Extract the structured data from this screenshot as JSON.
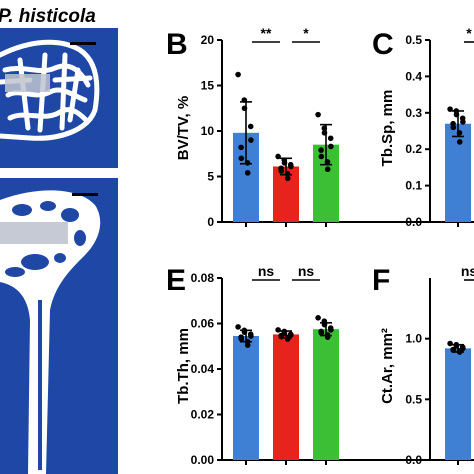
{
  "figure": {
    "micro_ct_title": "P. histicola",
    "colors": {
      "scan_bg": "#1f47a6",
      "bone": "#ffffff",
      "grey_bone": "#bfc4cf"
    }
  },
  "panels": [
    {
      "letter": "B",
      "ylabel": "BV/TV, %"
    },
    {
      "letter": "C",
      "ylabel": "Tb.Sp, mm"
    },
    {
      "letter": "E",
      "ylabel": "Tb.Th, mm"
    },
    {
      "letter": "F",
      "ylabel": "Ct.Ar, mm²"
    }
  ],
  "chart_data": [
    {
      "type": "bar",
      "panel": "B",
      "ylabel": "BV/TV, %",
      "ylim": [
        0,
        20
      ],
      "yticks": [
        "0",
        "5",
        "10",
        "15",
        "20"
      ],
      "colors": [
        "#3f7fd4",
        "#e8221c",
        "#3dbf35"
      ],
      "values": [
        9.8,
        6.1,
        8.5
      ],
      "errors": [
        3.4,
        0.9,
        2.2
      ],
      "points": [
        [
          16.2,
          13.4,
          12.5,
          10.5,
          9.0,
          8.2,
          7.0,
          6.5,
          5.4
        ],
        [
          7.2,
          6.8,
          6.5,
          6.3,
          6.1,
          5.9,
          5.6,
          5.3,
          4.8
        ],
        [
          11.8,
          10.3,
          9.8,
          9.2,
          8.3,
          7.9,
          7.2,
          6.6,
          5.8
        ]
      ],
      "significance": [
        {
          "from": 0,
          "to": 1,
          "label": "**"
        },
        {
          "from": 1,
          "to": 2,
          "label": "*"
        }
      ]
    },
    {
      "type": "bar",
      "panel": "C",
      "ylabel": "Tb.Sp, mm",
      "ylim": [
        0,
        0.5
      ],
      "yticks": [
        "0.0",
        "0.1",
        "0.2",
        "0.3",
        "0.4",
        "0.5"
      ],
      "colors": [
        "#3f7fd4"
      ],
      "values": [
        0.27
      ],
      "errors": [
        0.035
      ],
      "points": [
        [
          0.31,
          0.305,
          0.295,
          0.285,
          0.275,
          0.27,
          0.26,
          0.245,
          0.22
        ]
      ],
      "significance": [
        {
          "from": 0,
          "to": 1,
          "label": "*"
        }
      ]
    },
    {
      "type": "bar",
      "panel": "E",
      "ylabel": "Tb.Th, mm",
      "ylim": [
        0,
        0.08
      ],
      "yticks": [
        "0.00",
        "0.02",
        "0.04",
        "0.06",
        "0.08"
      ],
      "colors": [
        "#3f7fd4",
        "#e8221c",
        "#3dbf35"
      ],
      "values": [
        0.0545,
        0.0552,
        0.0575
      ],
      "errors": [
        0.0025,
        0.0015,
        0.0028
      ],
      "points": [
        [
          0.0585,
          0.057,
          0.0562,
          0.0553,
          0.0545,
          0.054,
          0.0532,
          0.052,
          0.0505
        ],
        [
          0.0572,
          0.0565,
          0.0558,
          0.0553,
          0.055,
          0.0547,
          0.0542,
          0.0538,
          0.0532
        ],
        [
          0.0625,
          0.061,
          0.0595,
          0.058,
          0.0572,
          0.0565,
          0.0558,
          0.055,
          0.054
        ]
      ],
      "significance": [
        {
          "from": 0,
          "to": 1,
          "label": "ns"
        },
        {
          "from": 1,
          "to": 2,
          "label": "ns"
        }
      ]
    },
    {
      "type": "bar",
      "panel": "F",
      "ylabel": "Ct.Ar, mm²",
      "ylim": [
        0,
        1.5
      ],
      "yticks": [
        "0.0",
        "0.5",
        "1.0"
      ],
      "colors": [
        "#3f7fd4"
      ],
      "values": [
        0.92
      ],
      "errors": [
        0.03
      ],
      "points": [
        [
          0.96,
          0.95,
          0.94,
          0.93,
          0.92,
          0.91,
          0.905,
          0.9,
          0.89
        ]
      ],
      "significance": [
        {
          "from": 0,
          "to": 1,
          "label": "ns"
        }
      ]
    }
  ]
}
